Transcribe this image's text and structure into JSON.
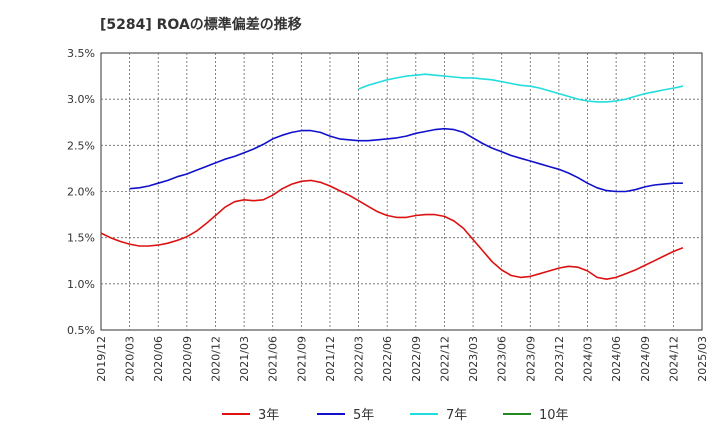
{
  "chart_data": {
    "type": "line",
    "title": "[5284]  ROAの標準偏差の推移",
    "xlabel": "",
    "ylabel": "",
    "ylim": [
      0.5,
      3.5
    ],
    "grid": true,
    "legend_placement": "bottom",
    "y_ticks": [
      "3.5%",
      "3.0%",
      "2.5%",
      "2.0%",
      "1.5%",
      "1.0%",
      "0.5%"
    ],
    "x_ticks": [
      "2019/12",
      "2020/03",
      "2020/06",
      "2020/09",
      "2020/12",
      "2021/03",
      "2021/06",
      "2021/09",
      "2021/12",
      "2022/03",
      "2022/06",
      "2022/09",
      "2022/12",
      "2023/03",
      "2023/06",
      "2023/09",
      "2023/12",
      "2024/03",
      "2024/06",
      "2024/09",
      "2024/12",
      "2025/03"
    ],
    "series": [
      {
        "name": "3年",
        "color": "#dd1111",
        "values": [
          [
            "2019-12",
            1.55
          ],
          [
            "2020-01",
            1.5
          ],
          [
            "2020-02",
            1.46
          ],
          [
            "2020-03",
            1.43
          ],
          [
            "2020-04",
            1.41
          ],
          [
            "2020-05",
            1.41
          ],
          [
            "2020-06",
            1.42
          ],
          [
            "2020-07",
            1.44
          ],
          [
            "2020-08",
            1.47
          ],
          [
            "2020-09",
            1.51
          ],
          [
            "2020-10",
            1.57
          ],
          [
            "2020-11",
            1.65
          ],
          [
            "2020-12",
            1.74
          ],
          [
            "2021-01",
            1.83
          ],
          [
            "2021-02",
            1.89
          ],
          [
            "2021-03",
            1.91
          ],
          [
            "2021-04",
            1.9
          ],
          [
            "2021-05",
            1.91
          ],
          [
            "2021-06",
            1.96
          ],
          [
            "2021-07",
            2.03
          ],
          [
            "2021-08",
            2.08
          ],
          [
            "2021-09",
            2.11
          ],
          [
            "2021-10",
            2.12
          ],
          [
            "2021-11",
            2.1
          ],
          [
            "2021-12",
            2.06
          ],
          [
            "2022-01",
            2.01
          ],
          [
            "2022-02",
            1.96
          ],
          [
            "2022-03",
            1.9
          ],
          [
            "2022-04",
            1.84
          ],
          [
            "2022-05",
            1.78
          ],
          [
            "2022-06",
            1.74
          ],
          [
            "2022-07",
            1.72
          ],
          [
            "2022-08",
            1.72
          ],
          [
            "2022-09",
            1.74
          ],
          [
            "2022-10",
            1.75
          ],
          [
            "2022-11",
            1.75
          ],
          [
            "2022-12",
            1.73
          ],
          [
            "2023-01",
            1.68
          ],
          [
            "2023-02",
            1.6
          ],
          [
            "2023-03",
            1.48
          ],
          [
            "2023-04",
            1.36
          ],
          [
            "2023-05",
            1.24
          ],
          [
            "2023-06",
            1.15
          ],
          [
            "2023-07",
            1.09
          ],
          [
            "2023-08",
            1.07
          ],
          [
            "2023-09",
            1.08
          ],
          [
            "2023-10",
            1.11
          ],
          [
            "2023-11",
            1.14
          ],
          [
            "2023-12",
            1.17
          ],
          [
            "2024-01",
            1.19
          ],
          [
            "2024-02",
            1.18
          ],
          [
            "2024-03",
            1.14
          ],
          [
            "2024-04",
            1.07
          ],
          [
            "2024-05",
            1.05
          ],
          [
            "2024-06",
            1.07
          ],
          [
            "2024-07",
            1.11
          ],
          [
            "2024-08",
            1.15
          ],
          [
            "2024-09",
            1.2
          ],
          [
            "2024-10",
            1.25
          ],
          [
            "2024-11",
            1.3
          ],
          [
            "2024-12",
            1.35
          ],
          [
            "2025-01",
            1.39
          ]
        ]
      },
      {
        "name": "5年",
        "color": "#1111cc",
        "values": [
          [
            "2020-03",
            2.03
          ],
          [
            "2020-04",
            2.04
          ],
          [
            "2020-05",
            2.06
          ],
          [
            "2020-06",
            2.09
          ],
          [
            "2020-07",
            2.12
          ],
          [
            "2020-08",
            2.16
          ],
          [
            "2020-09",
            2.19
          ],
          [
            "2020-10",
            2.23
          ],
          [
            "2020-11",
            2.27
          ],
          [
            "2020-12",
            2.31
          ],
          [
            "2021-01",
            2.35
          ],
          [
            "2021-02",
            2.38
          ],
          [
            "2021-03",
            2.42
          ],
          [
            "2021-04",
            2.46
          ],
          [
            "2021-05",
            2.51
          ],
          [
            "2021-06",
            2.57
          ],
          [
            "2021-07",
            2.61
          ],
          [
            "2021-08",
            2.64
          ],
          [
            "2021-09",
            2.66
          ],
          [
            "2021-10",
            2.66
          ],
          [
            "2021-11",
            2.64
          ],
          [
            "2021-12",
            2.6
          ],
          [
            "2022-01",
            2.57
          ],
          [
            "2022-02",
            2.56
          ],
          [
            "2022-03",
            2.55
          ],
          [
            "2022-04",
            2.55
          ],
          [
            "2022-05",
            2.56
          ],
          [
            "2022-06",
            2.57
          ],
          [
            "2022-07",
            2.58
          ],
          [
            "2022-08",
            2.6
          ],
          [
            "2022-09",
            2.63
          ],
          [
            "2022-10",
            2.65
          ],
          [
            "2022-11",
            2.67
          ],
          [
            "2022-12",
            2.68
          ],
          [
            "2023-01",
            2.67
          ],
          [
            "2023-02",
            2.64
          ],
          [
            "2023-03",
            2.58
          ],
          [
            "2023-04",
            2.52
          ],
          [
            "2023-05",
            2.47
          ],
          [
            "2023-06",
            2.43
          ],
          [
            "2023-07",
            2.39
          ],
          [
            "2023-08",
            2.36
          ],
          [
            "2023-09",
            2.33
          ],
          [
            "2023-10",
            2.3
          ],
          [
            "2023-11",
            2.27
          ],
          [
            "2023-12",
            2.24
          ],
          [
            "2024-01",
            2.2
          ],
          [
            "2024-02",
            2.15
          ],
          [
            "2024-03",
            2.09
          ],
          [
            "2024-04",
            2.04
          ],
          [
            "2024-05",
            2.01
          ],
          [
            "2024-06",
            2.0
          ],
          [
            "2024-07",
            2.0
          ],
          [
            "2024-08",
            2.02
          ],
          [
            "2024-09",
            2.05
          ],
          [
            "2024-10",
            2.07
          ],
          [
            "2024-11",
            2.08
          ],
          [
            "2024-12",
            2.09
          ],
          [
            "2025-01",
            2.09
          ]
        ]
      },
      {
        "name": "7年",
        "color": "#22dddd",
        "values": [
          [
            "2022-03",
            3.11
          ],
          [
            "2022-04",
            3.15
          ],
          [
            "2022-05",
            3.18
          ],
          [
            "2022-06",
            3.21
          ],
          [
            "2022-07",
            3.23
          ],
          [
            "2022-08",
            3.25
          ],
          [
            "2022-09",
            3.26
          ],
          [
            "2022-10",
            3.27
          ],
          [
            "2022-11",
            3.26
          ],
          [
            "2022-12",
            3.25
          ],
          [
            "2023-01",
            3.24
          ],
          [
            "2023-02",
            3.23
          ],
          [
            "2023-03",
            3.23
          ],
          [
            "2023-04",
            3.22
          ],
          [
            "2023-05",
            3.21
          ],
          [
            "2023-06",
            3.19
          ],
          [
            "2023-07",
            3.17
          ],
          [
            "2023-08",
            3.15
          ],
          [
            "2023-09",
            3.14
          ],
          [
            "2023-10",
            3.12
          ],
          [
            "2023-11",
            3.09
          ],
          [
            "2023-12",
            3.06
          ],
          [
            "2024-01",
            3.03
          ],
          [
            "2024-02",
            3.0
          ],
          [
            "2024-03",
            2.98
          ],
          [
            "2024-04",
            2.97
          ],
          [
            "2024-05",
            2.97
          ],
          [
            "2024-06",
            2.98
          ],
          [
            "2024-07",
            3.0
          ],
          [
            "2024-08",
            3.03
          ],
          [
            "2024-09",
            3.06
          ],
          [
            "2024-10",
            3.08
          ],
          [
            "2024-11",
            3.1
          ],
          [
            "2024-12",
            3.12
          ],
          [
            "2025-01",
            3.14
          ]
        ]
      },
      {
        "name": "10年",
        "color": "#228822",
        "values": []
      }
    ]
  }
}
